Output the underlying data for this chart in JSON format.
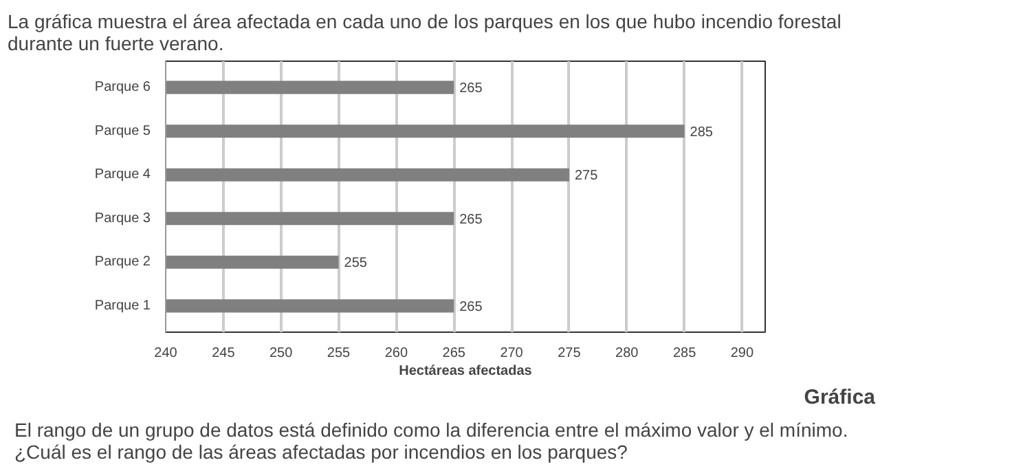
{
  "chart_data": {
    "type": "bar",
    "orientation": "horizontal",
    "title": "La gráfica muestra el área afectada en cada uno de los parques en los que hubo incendio forestal\ndurante un fuerte verano.",
    "xlabel": "Hectáreas afectadas",
    "categories": [
      "Parque 6",
      "Parque 5",
      "Parque 4",
      "Parque 3",
      "Parque 2",
      "Parque 1"
    ],
    "values": [
      265,
      285,
      275,
      265,
      255,
      265
    ],
    "color": "#808080",
    "xlim": [
      240,
      292
    ],
    "xticks": [
      240,
      245,
      250,
      255,
      260,
      265,
      270,
      275,
      280,
      285,
      290
    ],
    "grid": "x",
    "data_labels": true,
    "annotations": [
      "Gráfica",
      "El rango de un grupo de datos está definido como la diferencia entre el máximo valor y el mínimo.\n¿Cuál es el rango de las áreas afectadas por incendios en los parques?"
    ]
  }
}
